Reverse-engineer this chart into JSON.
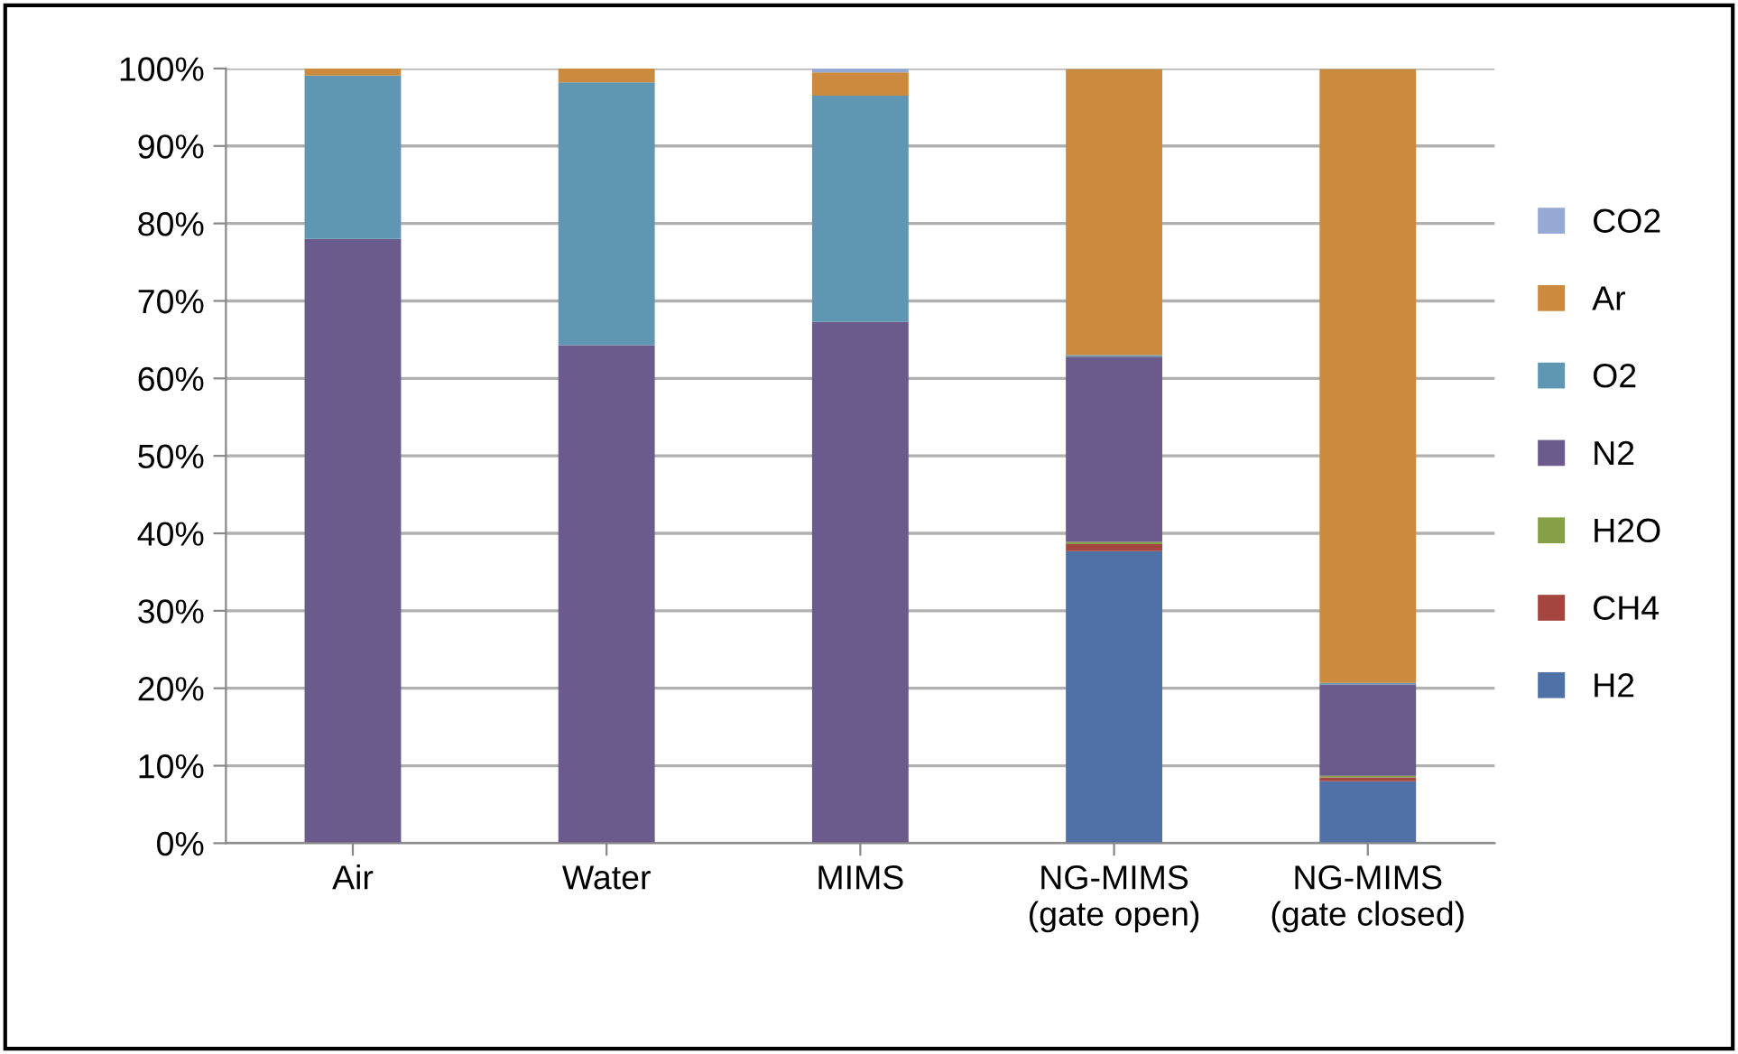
{
  "chart_data": {
    "type": "bar",
    "stacked": true,
    "categories": [
      "Air",
      "Water",
      "MIMS",
      "NG-MIMS\n(gate open)",
      "NG-MIMS\n(gate closed)"
    ],
    "series": [
      {
        "name": "H2",
        "color": "#4f71a8",
        "values": [
          0,
          0,
          0,
          37.7,
          8.0
        ]
      },
      {
        "name": "CH4",
        "color": "#a4463f",
        "values": [
          0,
          0,
          0,
          0.9,
          0.5
        ]
      },
      {
        "name": "H2O",
        "color": "#86a048",
        "values": [
          0,
          0,
          0,
          0.3,
          0.2
        ]
      },
      {
        "name": "N2",
        "color": "#6b5a8c",
        "values": [
          78.0,
          64.3,
          67.3,
          23.9,
          11.8
        ]
      },
      {
        "name": "O2",
        "color": "#5f96b1",
        "values": [
          21.1,
          33.9,
          29.2,
          0.2,
          0.2
        ]
      },
      {
        "name": "Ar",
        "color": "#cb8a3d",
        "values": [
          0.9,
          1.8,
          3.0,
          36.9,
          79.2
        ]
      },
      {
        "name": "CO2",
        "color": "#96a8d4",
        "values": [
          0,
          0,
          0.5,
          null,
          null
        ]
      }
    ],
    "ylim": [
      0,
      100
    ],
    "yticks": [
      {
        "value": 0,
        "label": "0%"
      },
      {
        "value": 10,
        "label": "10%"
      },
      {
        "value": 20,
        "label": "20%"
      },
      {
        "value": 30,
        "label": "30%"
      },
      {
        "value": 40,
        "label": "40%"
      },
      {
        "value": 50,
        "label": "50%"
      },
      {
        "value": 60,
        "label": "60%"
      },
      {
        "value": 70,
        "label": "70%"
      },
      {
        "value": 80,
        "label": "80%"
      },
      {
        "value": 90,
        "label": "90%"
      },
      {
        "value": 100,
        "label": "100%"
      }
    ],
    "grid": "y",
    "legend": "right"
  }
}
